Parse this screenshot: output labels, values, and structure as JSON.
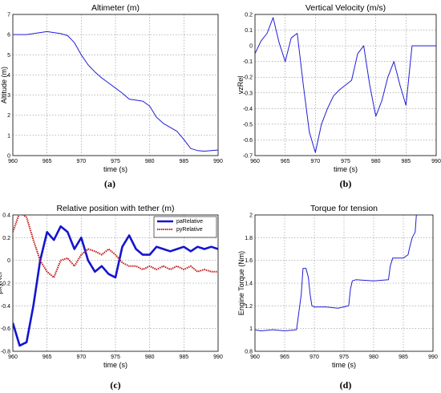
{
  "chart_data": [
    {
      "type": "line",
      "title": "Altimeter (m)",
      "xlabel": "time (s)",
      "ylabel": "Altitude (m)",
      "caption": "(a)",
      "xlim": [
        960,
        990
      ],
      "ylim": [
        0,
        7
      ],
      "xticks": [
        960,
        965,
        970,
        975,
        980,
        985,
        990
      ],
      "yticks": [
        0,
        1,
        2,
        3,
        4,
        5,
        6,
        7
      ],
      "grid": true,
      "series": [
        {
          "color": "#1f1fd6",
          "x": [
            960,
            961,
            962,
            963,
            964,
            965,
            966,
            967,
            968,
            969,
            970,
            971,
            972,
            973,
            974,
            975,
            976,
            977,
            978,
            979,
            980,
            981,
            982,
            983,
            984,
            985,
            986,
            987,
            988,
            989,
            990
          ],
          "y": [
            6.0,
            6.0,
            6.0,
            6.05,
            6.1,
            6.15,
            6.1,
            6.05,
            5.95,
            5.6,
            5.0,
            4.5,
            4.15,
            3.85,
            3.6,
            3.35,
            3.1,
            2.8,
            2.75,
            2.7,
            2.45,
            1.9,
            1.6,
            1.4,
            1.2,
            0.8,
            0.35,
            0.25,
            0.22,
            0.25,
            0.28
          ]
        }
      ]
    },
    {
      "type": "line",
      "title": "Vertical Velocity (m/s)",
      "xlabel": "time (s)",
      "ylabel": "vzRel",
      "caption": "(b)",
      "xlim": [
        960,
        990
      ],
      "ylim": [
        -0.7,
        0.2
      ],
      "xticks": [
        960,
        965,
        970,
        975,
        980,
        985,
        990
      ],
      "yticks": [
        0.2,
        0.1,
        0,
        -0.1,
        -0.2,
        -0.3,
        -0.4,
        -0.5,
        -0.6,
        -0.7
      ],
      "grid": true,
      "series": [
        {
          "color": "#1f1fd6",
          "x": [
            960,
            961,
            962,
            963,
            964,
            965,
            966,
            967,
            968,
            969,
            970,
            971,
            972,
            973,
            974,
            975,
            976,
            977,
            978,
            979,
            980,
            981,
            982,
            983,
            984,
            985,
            986,
            987,
            988,
            989,
            990
          ],
          "y": [
            -0.05,
            0.03,
            0.08,
            0.18,
            0.02,
            -0.1,
            0.05,
            0.08,
            -0.25,
            -0.55,
            -0.68,
            -0.5,
            -0.4,
            -0.32,
            -0.28,
            -0.25,
            -0.22,
            -0.05,
            0.0,
            -0.25,
            -0.45,
            -0.35,
            -0.2,
            -0.1,
            -0.25,
            -0.38,
            0.0,
            0.0,
            0.0,
            0.0,
            0.0
          ]
        }
      ]
    },
    {
      "type": "line",
      "title": "Relative position with tether (m)",
      "xlabel": "time (s)",
      "ylabel": "pxyRel",
      "caption": "(c)",
      "xlim": [
        960,
        990
      ],
      "ylim": [
        -0.8,
        0.4
      ],
      "xticks": [
        960,
        965,
        970,
        975,
        980,
        985,
        990
      ],
      "yticks": [
        0.4,
        0.2,
        0,
        -0.2,
        -0.4,
        -0.6,
        -0.8
      ],
      "grid": true,
      "legend": "top-right",
      "series": [
        {
          "name": "paRelative",
          "color": "#1414d0",
          "x": [
            960,
            961,
            962,
            963,
            964,
            965,
            966,
            967,
            968,
            969,
            970,
            971,
            972,
            973,
            974,
            975,
            976,
            977,
            978,
            979,
            980,
            981,
            982,
            983,
            984,
            985,
            986,
            987,
            988,
            989,
            990
          ],
          "y": [
            -0.55,
            -0.75,
            -0.72,
            -0.4,
            0.0,
            0.25,
            0.18,
            0.3,
            0.25,
            0.1,
            0.2,
            0.0,
            -0.1,
            -0.05,
            -0.12,
            -0.15,
            0.12,
            0.22,
            0.1,
            0.05,
            0.05,
            0.12,
            0.1,
            0.08,
            0.1,
            0.12,
            0.08,
            0.12,
            0.1,
            0.12,
            0.1
          ]
        },
        {
          "name": "pyRelative",
          "color": "#c01818",
          "x": [
            960,
            961,
            962,
            963,
            964,
            965,
            966,
            967,
            968,
            969,
            970,
            971,
            972,
            973,
            974,
            975,
            976,
            977,
            978,
            979,
            980,
            981,
            982,
            983,
            984,
            985,
            986,
            987,
            988,
            989,
            990
          ],
          "y": [
            0.25,
            0.42,
            0.38,
            0.18,
            0.0,
            -0.1,
            -0.15,
            0.0,
            0.02,
            -0.05,
            0.05,
            0.1,
            0.08,
            0.05,
            0.1,
            0.05,
            -0.02,
            -0.05,
            -0.05,
            -0.08,
            -0.05,
            -0.08,
            -0.05,
            -0.08,
            -0.05,
            -0.08,
            -0.05,
            -0.1,
            -0.08,
            -0.1,
            -0.1
          ]
        }
      ]
    },
    {
      "type": "line",
      "title": "Torque for tension",
      "xlabel": "time (s)",
      "ylabel": "Engine Torque (Nm)",
      "caption": "(d)",
      "xlim": [
        960,
        990
      ],
      "ylim": [
        0.8,
        2.0
      ],
      "xticks": [
        960,
        965,
        970,
        975,
        980,
        985,
        990
      ],
      "yticks": [
        0.8,
        1,
        1.2,
        1.4,
        1.6,
        1.8,
        2
      ],
      "grid": true,
      "series": [
        {
          "color": "#1f1fd6",
          "x": [
            960,
            961,
            963,
            965,
            967,
            967.8,
            968.1,
            968.6,
            969,
            969.3,
            969.6,
            970,
            972,
            974,
            975.8,
            976.1,
            976.4,
            977,
            980,
            982.5,
            982.8,
            983.2,
            985,
            985.8,
            986.1,
            986.5,
            987,
            987.2,
            989.5
          ],
          "y": [
            0.99,
            0.98,
            0.99,
            0.98,
            0.99,
            1.3,
            1.53,
            1.53,
            1.45,
            1.3,
            1.2,
            1.19,
            1.19,
            1.18,
            1.2,
            1.35,
            1.42,
            1.43,
            1.42,
            1.43,
            1.55,
            1.62,
            1.62,
            1.65,
            1.72,
            1.8,
            1.85,
            2.0,
            2.0
          ]
        }
      ]
    }
  ]
}
